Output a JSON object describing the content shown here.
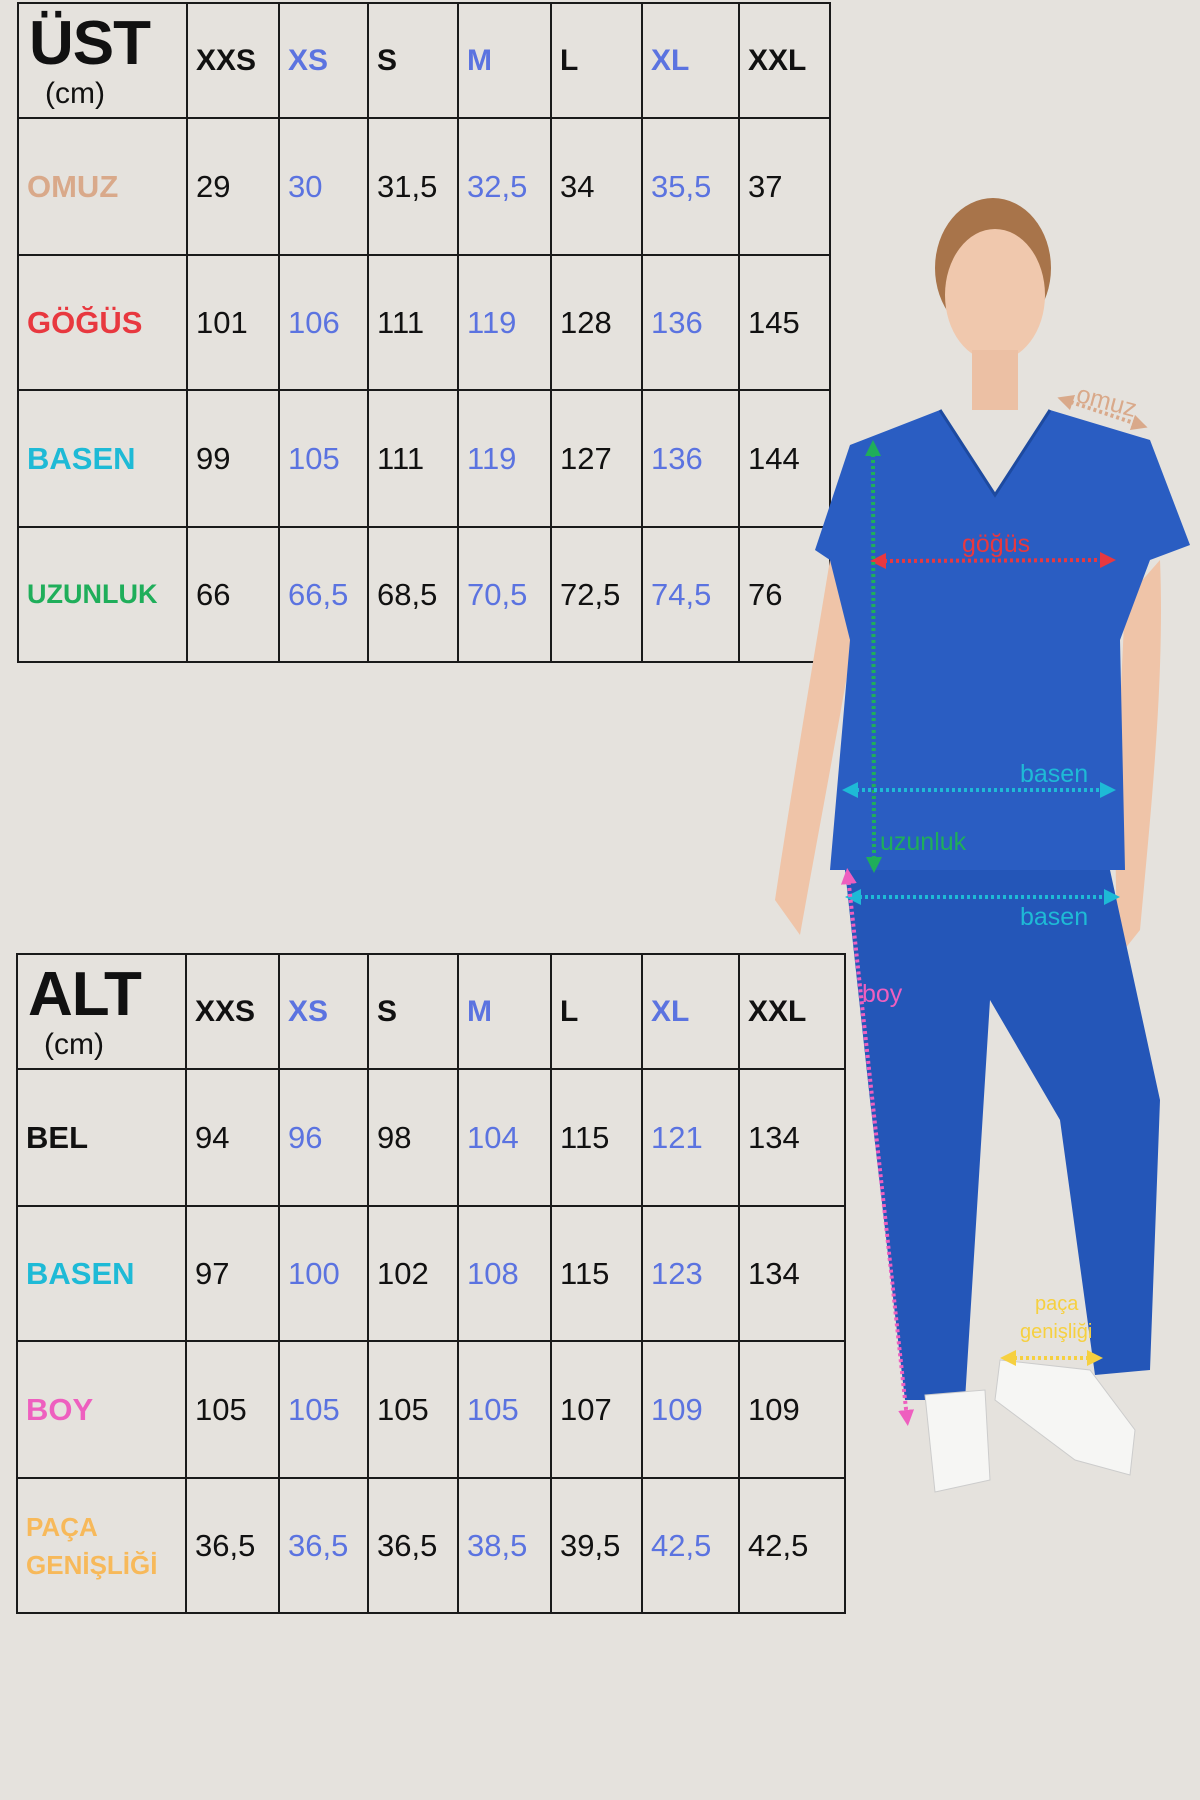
{
  "colors": {
    "background": "#e5e2dd",
    "alt_size": "#5b73e0",
    "omuz": "#d9a98a",
    "gogus": "#e8383f",
    "basen": "#1ebad6",
    "uzunluk": "#1fae5a",
    "boy": "#ee5fbf",
    "paca": "#f7b95a",
    "bel": "#111111",
    "scrubs": "#2456b8"
  },
  "tables": [
    {
      "title": "ÜST",
      "unit": "(cm)",
      "sizes": [
        "XXS",
        "XS",
        "S",
        "M",
        "L",
        "XL",
        "XXL"
      ],
      "rows": [
        {
          "label": "OMUZ",
          "color_key": "omuz",
          "values": [
            "29",
            "30",
            "31,5",
            "32,5",
            "34",
            "35,5",
            "37"
          ]
        },
        {
          "label": "GÖĞÜS",
          "color_key": "gogus",
          "values": [
            "101",
            "106",
            "111",
            "119",
            "128",
            "136",
            "145"
          ]
        },
        {
          "label": "BASEN",
          "color_key": "basen",
          "values": [
            "99",
            "105",
            "111",
            "119",
            "127",
            "136",
            "144"
          ]
        },
        {
          "label": "UZUNLUK",
          "color_key": "uzunluk",
          "values": [
            "66",
            "66,5",
            "68,5",
            "70,5",
            "72,5",
            "74,5",
            "76"
          ]
        }
      ]
    },
    {
      "title": "ALT",
      "unit": "(cm)",
      "sizes": [
        "XXS",
        "XS",
        "S",
        "M",
        "L",
        "XL",
        "XXL"
      ],
      "rows": [
        {
          "label": "BEL",
          "color_key": "bel",
          "values": [
            "94",
            "96",
            "98",
            "104",
            "115",
            "121",
            "134"
          ]
        },
        {
          "label": "BASEN",
          "color_key": "basen",
          "values": [
            "97",
            "100",
            "102",
            "108",
            "115",
            "123",
            "134"
          ]
        },
        {
          "label": "BOY",
          "color_key": "boy",
          "values": [
            "105",
            "105",
            "105",
            "105",
            "107",
            "109",
            "109"
          ]
        },
        {
          "label": "PAÇA GENİŞLİĞİ",
          "color_key": "paca",
          "values": [
            "36,5",
            "36,5",
            "36,5",
            "38,5",
            "39,5",
            "42,5",
            "42,5"
          ]
        }
      ]
    }
  ],
  "figure": {
    "labels": {
      "omuz": "omuz",
      "gogus": "göğüs",
      "basen_top": "basen",
      "uzunluk": "uzunluk",
      "basen_bottom": "basen",
      "boy": "boy",
      "paca_1": "paça",
      "paca_2": "genişliği"
    }
  }
}
